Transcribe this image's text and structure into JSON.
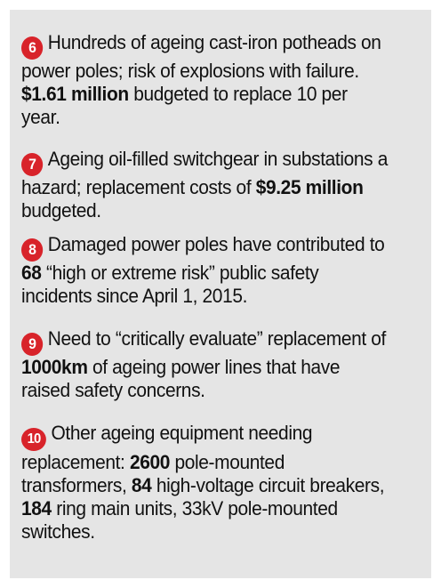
{
  "colors": {
    "panel_background": "#e5e5e5",
    "badge": "#d8232a",
    "text": "#111111"
  },
  "items": [
    {
      "number": "6",
      "parts": [
        "Hundreds of ageing cast-iron potheads on power poles; risk of explosions with failure. ",
        "$1.61 million",
        " budgeted to replace 10 per year."
      ]
    },
    {
      "number": "7",
      "parts": [
        "Ageing oil-filled switchgear in substations a hazard; replacement costs of ",
        "$9.25 million",
        " budgeted."
      ]
    },
    {
      "number": "8",
      "parts": [
        "Damaged power poles have contributed to ",
        "68",
        " “high or extreme risk” public safety incidents since April 1, 2015."
      ]
    },
    {
      "number": "9",
      "parts": [
        "Need to “critically evaluate” replacement of ",
        "1000km",
        " of ageing power lines that have raised safety concerns."
      ]
    },
    {
      "number": "10",
      "parts": [
        "Other ageing equipment needing replacement: ",
        "2600",
        " pole-mounted transformers, ",
        "84",
        " high-voltage circuit breakers, ",
        "184",
        " ring main units, 33kV pole-mounted switches."
      ]
    }
  ]
}
